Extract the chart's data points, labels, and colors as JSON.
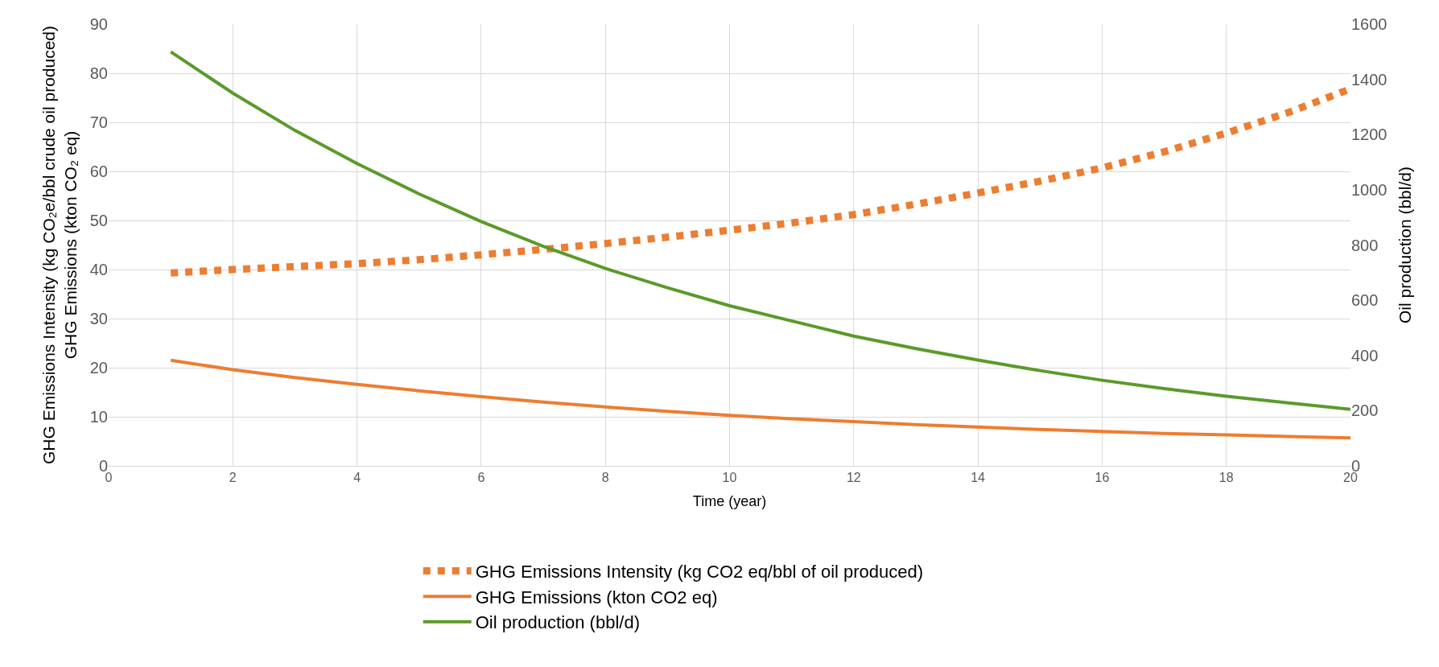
{
  "chart_data": {
    "type": "line",
    "xlabel": "Time (year)",
    "ylabel": "GHG Emissions Intensity (kg CO₂e/bbl crude oil produced)\nGHG Emissions (kton CO₂ eq)",
    "y2label": "Oil production (bbl/d)",
    "x": [
      1,
      2,
      3,
      4,
      5,
      6,
      7,
      8,
      9,
      10,
      11,
      12,
      13,
      14,
      15,
      16,
      17,
      18,
      19,
      20
    ],
    "series": [
      {
        "name": "GHG Emissions Intensity (kg CO2 eq/bbl of oil produced)",
        "color": "#ed7d31",
        "line_style": "dotted",
        "values": [
          39.3,
          40.0,
          40.6,
          41.2,
          42.0,
          43.0,
          44.1,
          45.3,
          46.6,
          48.0,
          49.5,
          51.2,
          53.3,
          55.6,
          58.0,
          60.7,
          64.0,
          67.8,
          72.0,
          76.8
        ]
      },
      {
        "name": "GHG Emissions (kton CO2 eq)",
        "color": "#ed7d31",
        "line_style": "solid",
        "values": [
          21.5,
          19.6,
          18.0,
          16.6,
          15.3,
          14.1,
          13.0,
          12.0,
          11.1,
          10.3,
          9.6,
          9.0,
          8.4,
          7.9,
          7.4,
          7.0,
          6.6,
          6.3,
          6.0,
          5.7
        ]
      },
      {
        "name": "Oil production (bbl/d)",
        "color": "#5b9a2a",
        "line_style": "solid",
        "axis": "y2",
        "values": [
          1500,
          1350,
          1215,
          1095,
          985,
          885,
          795,
          715,
          645,
          580,
          525,
          470,
          425,
          383,
          345,
          310,
          280,
          252,
          228,
          205
        ]
      }
    ],
    "xlim": [
      0,
      20
    ],
    "xticks": [
      0,
      2,
      4,
      6,
      8,
      10,
      12,
      14,
      16,
      18,
      20
    ],
    "ylim": [
      0,
      90
    ],
    "yticks": [
      0,
      10,
      20,
      30,
      40,
      50,
      60,
      70,
      80,
      90
    ],
    "y2lim": [
      0,
      1600
    ],
    "y2ticks": [
      0,
      200,
      400,
      600,
      800,
      1000,
      1200,
      1400,
      1600
    ],
    "grid": true,
    "legend": "bottom",
    "marker": "none"
  }
}
